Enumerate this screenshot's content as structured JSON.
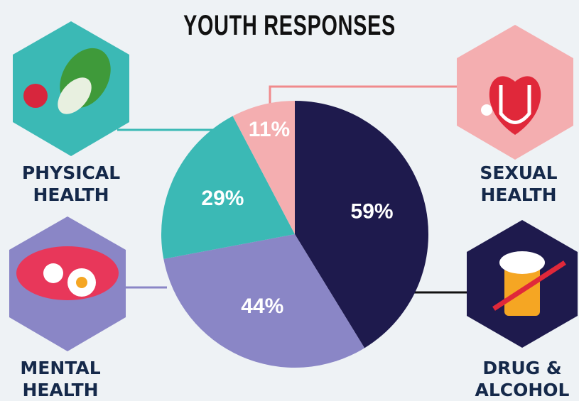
{
  "chart_data": {
    "type": "pie",
    "title": "YOUTH RESPONSES",
    "categories": [
      "DRUG & ALCOHOL",
      "MENTAL HEALTH",
      "PHYSICAL HEALTH",
      "SEXUAL HEALTH"
    ],
    "values": [
      59,
      44,
      29,
      11
    ],
    "value_labels": [
      "59%",
      "44%",
      "29%",
      "11%"
    ],
    "colors": [
      "#1e1a4d",
      "#8a86c6",
      "#3bb9b5",
      "#f4aeb0"
    ]
  }
}
